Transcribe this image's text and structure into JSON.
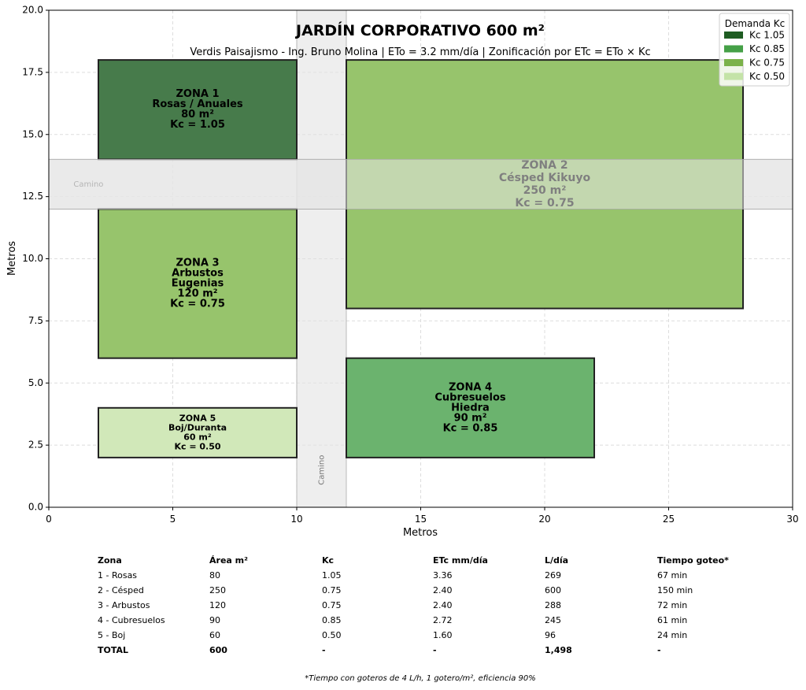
{
  "figure": {
    "title": "JARDÍN CORPORATIVO 600 m²",
    "subtitle": "Verdis Paisajismo - Ing. Bruno Molina | ETo = 3.2 mm/día | Zonificación por ETc = ETo × Kc",
    "xlabel": "Metros",
    "ylabel": "Metros",
    "xlim": [
      0,
      30
    ],
    "ylim": [
      0,
      20
    ],
    "xticks": [
      0,
      5,
      10,
      15,
      20,
      25,
      30
    ],
    "yticks": [
      0.0,
      2.5,
      5.0,
      7.5,
      10.0,
      12.5,
      15.0,
      17.5,
      20.0
    ],
    "grid": true
  },
  "legend": {
    "title": "Demanda Kc",
    "position": "top-right",
    "items": [
      {
        "label": "Kc 1.05",
        "color": "#1e5c22"
      },
      {
        "label": "Kc 0.85",
        "color": "#45a047"
      },
      {
        "label": "Kc 0.75",
        "color": "#7bb24a"
      },
      {
        "label": "Kc 0.50",
        "color": "#c4e3a8"
      }
    ]
  },
  "paths": [
    {
      "label": "Camino",
      "orientation": "vertical",
      "x": [
        10,
        12
      ],
      "y": [
        0,
        20
      ],
      "label_pos": [
        11,
        1.5
      ]
    },
    {
      "label": "Camino",
      "orientation": "horizontal",
      "x": [
        0,
        30
      ],
      "y": [
        12,
        14
      ],
      "label_pos": [
        1.6,
        13
      ]
    }
  ],
  "zones": [
    {
      "lines": [
        "ZONA 1",
        "Rosas / Anuales",
        "80 m²",
        "Kc = 1.05"
      ],
      "x": [
        2,
        10
      ],
      "y": [
        14,
        18
      ],
      "fill": "#477b4b",
      "size": "lg"
    },
    {
      "lines": [
        "ZONA 2",
        "Césped Kikuyo",
        "250 m²",
        "Kc = 0.75"
      ],
      "x": [
        12,
        28
      ],
      "y": [
        8,
        18
      ],
      "fill": "#97c46c",
      "size": "xl"
    },
    {
      "lines": [
        "ZONA 3",
        "Arbustos",
        "Eugenias",
        "120 m²",
        "Kc = 0.75"
      ],
      "x": [
        2,
        10
      ],
      "y": [
        6,
        12
      ],
      "fill": "#97c46c",
      "size": "lg"
    },
    {
      "lines": [
        "ZONA 4",
        "Cubresuelos",
        "Hiedra",
        "90 m²",
        "Kc = 0.85"
      ],
      "x": [
        12,
        22
      ],
      "y": [
        2,
        6
      ],
      "fill": "#6bb36e",
      "size": "lg"
    },
    {
      "lines": [
        "ZONA 5",
        "Boj/Duranta",
        "60 m²",
        "Kc = 0.50"
      ],
      "x": [
        2,
        10
      ],
      "y": [
        2,
        4
      ],
      "fill": "#d1e8b9",
      "size": "sm"
    }
  ],
  "table": {
    "columns": [
      "Zona",
      "Área m²",
      "Kc",
      "ETc mm/día",
      "L/día",
      "Tiempo goteo*"
    ],
    "rows": [
      [
        "1 - Rosas",
        "80",
        "1.05",
        "3.36",
        "269",
        "67 min"
      ],
      [
        "2 - Césped",
        "250",
        "0.75",
        "2.40",
        "600",
        "150 min"
      ],
      [
        "3 - Arbustos",
        "120",
        "0.75",
        "2.40",
        "288",
        "72 min"
      ],
      [
        "4 - Cubresuelos",
        "90",
        "0.85",
        "2.72",
        "245",
        "61 min"
      ],
      [
        "5 - Boj",
        "60",
        "0.50",
        "1.60",
        "96",
        "24 min"
      ],
      [
        "TOTAL",
        "600",
        "-",
        "-",
        "1,498",
        "-"
      ]
    ],
    "footnote": "*Tiempo con goteros de 4 L/h, 1 gotero/m², eficiencia 90%"
  }
}
